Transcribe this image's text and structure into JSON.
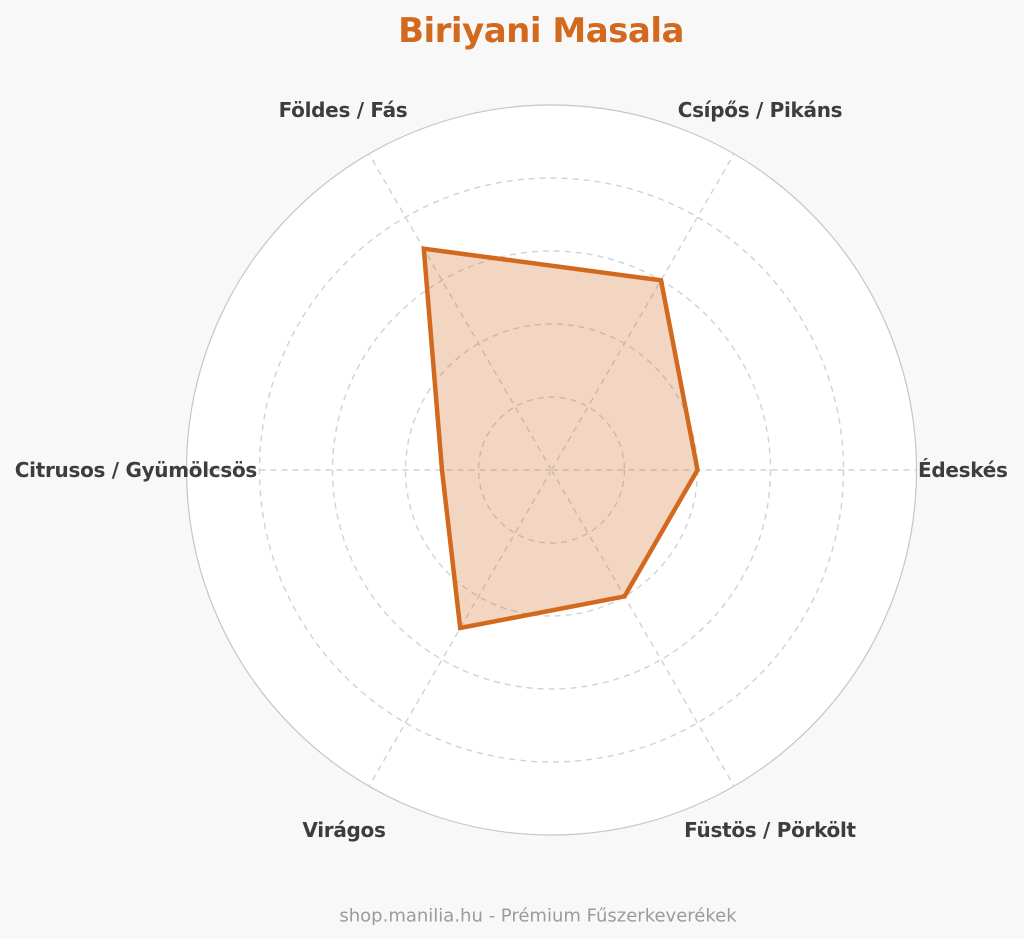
{
  "page": {
    "background_color": "#f8f8f8"
  },
  "chart_data": {
    "type": "radar",
    "title": "Biriyani Masala",
    "axes": [
      {
        "label": "Földes / Fás",
        "angle_deg": 120,
        "value": 7
      },
      {
        "label": "Csípős / Pikáns",
        "angle_deg": 60,
        "value": 6
      },
      {
        "label": "Édeskés",
        "angle_deg": 0,
        "value": 4
      },
      {
        "label": "Füstös / Pörkölt",
        "angle_deg": 300,
        "value": 4
      },
      {
        "label": "Virágos",
        "angle_deg": 240,
        "value": 5
      },
      {
        "label": "Citrusos / Gyümölcsös",
        "angle_deg": 180,
        "value": 3
      }
    ],
    "series": [
      {
        "name": "Biriyani Masala",
        "values": [
          7,
          6,
          4,
          4,
          5,
          3
        ]
      }
    ],
    "scale": {
      "min": 0,
      "max": 10,
      "ring_count": 5,
      "ring_step": 2,
      "tick_labels_visible": false
    },
    "grid": {
      "inner_rings": "dashed",
      "outer_ring": "solid",
      "radial_axes": "dashed"
    },
    "legend": {
      "visible": false
    },
    "colors": {
      "title": "#d2691e",
      "series_stroke": "#d2691e",
      "series_fill": "rgba(210,105,30,0.27)",
      "grid_dashed": "#d2d2d2",
      "outer_circle": "#c6c6c6",
      "plot_background": "#ffffff",
      "axis_label": "#3d3d3d",
      "center_dot": "#cfcfcf"
    }
  },
  "footer": {
    "text": "shop.manilia.hu - Prémium Fűszerkeverékek",
    "color": "#9b9b9b"
  }
}
